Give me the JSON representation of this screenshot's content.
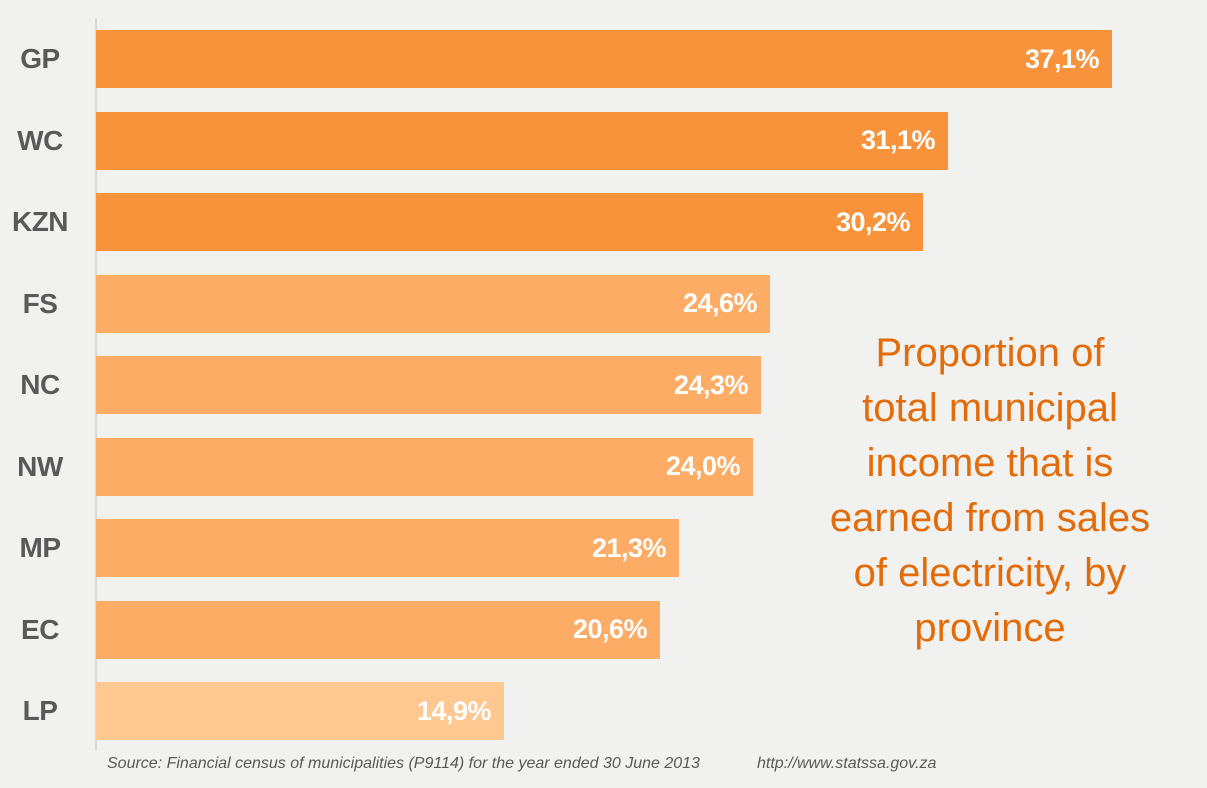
{
  "colors": {
    "background": "#F1F1F0",
    "title_text": "#E36C0A",
    "category_label": "#595959",
    "value_label": "#FFFFFF",
    "axis_line": "#D9D9D9",
    "source_text": "#595959",
    "bar_dark_orange": "#F8933B",
    "bar_medium_orange": "#FCAC64",
    "bar_light_orange": "#FEC890"
  },
  "chart_data": {
    "type": "bar",
    "orientation": "horizontal",
    "title": "Proportion of total municipal income that is earned from sales of electricity, by province",
    "title_lines": [
      "Proportion of",
      "total municipal",
      "income that is",
      "earned from sales",
      "of electricity, by",
      "province"
    ],
    "categories": [
      "GP",
      "WC",
      "KZN",
      "FS",
      "NC",
      "NW",
      "MP",
      "EC",
      "LP"
    ],
    "values": [
      37.1,
      31.1,
      30.2,
      24.6,
      24.3,
      24.0,
      21.3,
      20.6,
      14.9
    ],
    "value_labels": [
      "37,1%",
      "31,1%",
      "30,2%",
      "24,6%",
      "24,3%",
      "24,0%",
      "21,3%",
      "20,6%",
      "14,9%"
    ],
    "bar_colors": [
      "#F8933B",
      "#F8933B",
      "#F8933B",
      "#FCAC64",
      "#FCAC64",
      "#FCAC64",
      "#FCAC64",
      "#FCAC64",
      "#FEC890"
    ],
    "xlim": [
      0,
      37.1
    ],
    "xlabel": "",
    "ylabel": "",
    "grid": "off",
    "legend": "none",
    "value_label_position": "inside-end",
    "source": "Source: Financial census of municipalities (P9114) for the year ended 30 June 2013",
    "source_url": "http://www.statssa.gov.za"
  }
}
